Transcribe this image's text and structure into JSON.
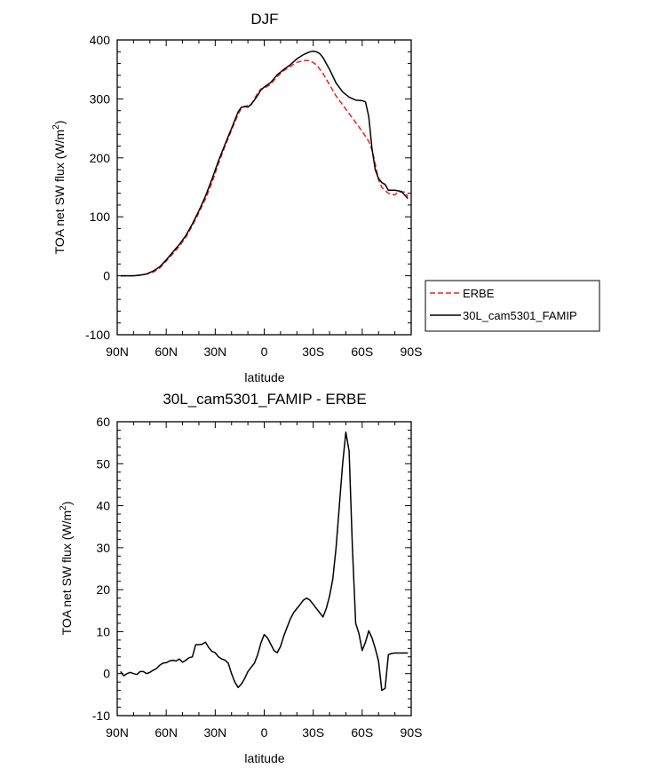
{
  "chart_data": [
    {
      "type": "line",
      "title": "DJF",
      "xlabel": "latitude",
      "ylabel": "TOA net SW flux (W/m",
      "ylabel_sup": "2",
      "ylabel_close": ")",
      "xlim": [
        90,
        -90
      ],
      "ylim": [
        -100,
        400
      ],
      "xticks": [
        90,
        60,
        30,
        0,
        -30,
        -60,
        -90
      ],
      "xtick_labels": [
        "90N",
        "60N",
        "30N",
        "0",
        "30S",
        "60S",
        "90S"
      ],
      "yticks": [
        -100,
        0,
        100,
        200,
        300,
        400
      ],
      "ytick_labels": [
        "-100",
        "0",
        "100",
        "200",
        "300",
        "400"
      ],
      "legend": {
        "placement": "right",
        "entries": [
          "ERBE",
          "30L_cam5301_FAMIP"
        ]
      },
      "series": [
        {
          "name": "ERBE",
          "color": "#ee2222",
          "dash": "dashed",
          "x": [
            88,
            84,
            80,
            76,
            72,
            68,
            64,
            60,
            56,
            52,
            48,
            44,
            40,
            36,
            32,
            28,
            24,
            20,
            16,
            14,
            12,
            10,
            8,
            6,
            4,
            2,
            0,
            -4,
            -8,
            -12,
            -16,
            -20,
            -24,
            -28,
            -32,
            -36,
            -40,
            -44,
            -48,
            -52,
            -56,
            -60,
            -64,
            -66,
            -68,
            -70,
            -72,
            -76,
            -80,
            -82,
            -86,
            -88
          ],
          "values": [
            0,
            0,
            0,
            1,
            3,
            6,
            13,
            25,
            37,
            50,
            65,
            85,
            107,
            130,
            158,
            190,
            220,
            247,
            274,
            284,
            287,
            289,
            290,
            300,
            310,
            317,
            318,
            325,
            338,
            348,
            355,
            362,
            365,
            365,
            358,
            343,
            324,
            305,
            290,
            275,
            260,
            245,
            228,
            213,
            190,
            163,
            150,
            140,
            137,
            142,
            142,
            135
          ]
        },
        {
          "name": "30L_cam5301_FAMIP",
          "color": "#000000",
          "dash": "solid",
          "x": [
            88,
            84,
            80,
            76,
            72,
            68,
            64,
            60,
            56,
            52,
            48,
            44,
            40,
            36,
            32,
            28,
            24,
            20,
            16,
            14,
            12,
            10,
            8,
            6,
            4,
            2,
            0,
            -4,
            -8,
            -12,
            -16,
            -20,
            -24,
            -28,
            -30,
            -32,
            -34,
            -36,
            -40,
            -44,
            -48,
            -52,
            -56,
            -60,
            -62,
            -64,
            -66,
            -68,
            -70,
            -72,
            -74,
            -76,
            -80,
            -84,
            -88
          ],
          "values": [
            0,
            0,
            0,
            1,
            3,
            8,
            15,
            27,
            40,
            53,
            68,
            88,
            110,
            135,
            164,
            195,
            223,
            250,
            278,
            286,
            287,
            286,
            291,
            298,
            306,
            315,
            320,
            328,
            341,
            350,
            358,
            368,
            375,
            380,
            381,
            380,
            377,
            370,
            350,
            327,
            312,
            303,
            298,
            297,
            295,
            270,
            215,
            180,
            165,
            158,
            155,
            145,
            145,
            143,
            131
          ]
        }
      ]
    },
    {
      "type": "line",
      "title": "30L_cam5301_FAMIP - ERBE",
      "xlabel": "latitude",
      "ylabel": "TOA net SW flux (W/m",
      "ylabel_sup": "2",
      "ylabel_close": ")",
      "xlim": [
        90,
        -90
      ],
      "ylim": [
        -10,
        60
      ],
      "xticks": [
        90,
        60,
        30,
        0,
        -30,
        -60,
        -90
      ],
      "xtick_labels": [
        "90N",
        "60N",
        "30N",
        "0",
        "30S",
        "60S",
        "90S"
      ],
      "yticks": [
        -10,
        0,
        10,
        20,
        30,
        40,
        50,
        60
      ],
      "ytick_labels": [
        "-10",
        "0",
        "10",
        "20",
        "30",
        "40",
        "50",
        "60"
      ],
      "series": [
        {
          "name": "30L_cam5301_FAMIP - ERBE",
          "color": "#000000",
          "dash": "solid",
          "x": [
            88,
            86,
            84,
            82,
            80,
            78,
            76,
            74,
            72,
            70,
            68,
            66,
            64,
            62,
            60,
            58,
            56,
            54,
            52,
            50,
            48,
            46,
            44,
            42,
            40,
            38,
            36,
            34,
            32,
            30,
            28,
            26,
            24,
            22,
            20,
            18,
            16,
            14,
            12,
            10,
            8,
            6,
            4,
            2,
            0,
            -2,
            -4,
            -6,
            -8,
            -10,
            -12,
            -14,
            -16,
            -18,
            -20,
            -22,
            -24,
            -26,
            -28,
            -30,
            -32,
            -34,
            -36,
            -38,
            -40,
            -42,
            -44,
            -46,
            -48,
            -50,
            -52,
            -54,
            -56,
            -58,
            -60,
            -62,
            -64,
            -66,
            -68,
            -70,
            -72,
            -74,
            -76,
            -78,
            -80,
            -82,
            -84,
            -86,
            -88
          ],
          "values": [
            0.5,
            -0.5,
            0,
            0.3,
            0,
            -0.2,
            0.5,
            0.5,
            0,
            0.3,
            0.8,
            1.2,
            2.0,
            2.5,
            2.6,
            3.0,
            3.2,
            3.0,
            3.5,
            2.7,
            3.2,
            3.8,
            4.0,
            6.9,
            6.9,
            7.0,
            7.5,
            6.2,
            5.3,
            5.0,
            4.0,
            3.5,
            3.2,
            2.5,
            0,
            -2.0,
            -3.3,
            -2.5,
            -1.2,
            0.5,
            1.5,
            2.5,
            4.5,
            7.3,
            9.3,
            8.5,
            7.0,
            5.5,
            5.0,
            6.5,
            9.0,
            11.0,
            13.0,
            14.5,
            15.5,
            16.5,
            17.5,
            18.0,
            17.5,
            16.5,
            15.5,
            14.5,
            13.5,
            15.5,
            18.5,
            22.5,
            30.0,
            40.0,
            50.0,
            57.5,
            53.0,
            30.0,
            12.0,
            9.5,
            5.5,
            7.5,
            10.2,
            8.5,
            6.0,
            3.0,
            -4.0,
            -3.5,
            4.5,
            4.8,
            4.9,
            4.9,
            4.9,
            4.9,
            4.9
          ]
        }
      ]
    }
  ]
}
